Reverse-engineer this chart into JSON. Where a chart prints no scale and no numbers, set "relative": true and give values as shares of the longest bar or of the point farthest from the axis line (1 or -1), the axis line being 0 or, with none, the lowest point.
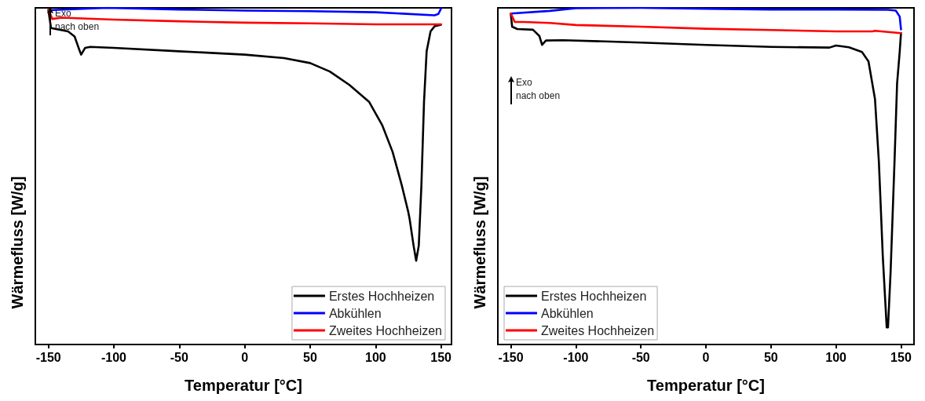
{
  "chart_data": [
    {
      "type": "line",
      "relative": true,
      "xlabel": "Temperatur [°C]",
      "ylabel": "Wärmefluss [W/g]",
      "xlim": [
        -160,
        158
      ],
      "xticks": [
        -150,
        -100,
        -50,
        0,
        50,
        100,
        150
      ],
      "grid": false,
      "legend": "bottom right",
      "marker": "none",
      "line_style": "solid",
      "annotations": [
        "Exo\nnach oben"
      ],
      "series": [
        {
          "name": "Erstes Hochheizen",
          "color": "#000000",
          "x": [
            -150,
            -148,
            -135,
            -130,
            -126,
            -125,
            -122,
            -118,
            -100,
            -50,
            0,
            30,
            50,
            65,
            80,
            95,
            105,
            113,
            120,
            125,
            126,
            129,
            131,
            133,
            135,
            137,
            139,
            142,
            145,
            150
          ],
          "values": [
            0.992,
            0.94,
            0.93,
            0.915,
            0.871,
            0.861,
            0.881,
            0.884,
            0.881,
            0.871,
            0.861,
            0.851,
            0.836,
            0.811,
            0.771,
            0.721,
            0.652,
            0.572,
            0.473,
            0.393,
            0.373,
            0.294,
            0.249,
            0.294,
            0.473,
            0.721,
            0.871,
            0.93,
            0.945,
            0.95
          ]
        },
        {
          "name": "Abkühlen",
          "color": "#0000ff",
          "x": [
            -150,
            -105,
            -50,
            0,
            50,
            100,
            145,
            148,
            150
          ],
          "values": [
            0.993,
            1.0,
            0.995,
            0.992,
            0.99,
            0.987,
            0.978,
            0.982,
            0.998
          ]
        },
        {
          "name": "Zweites Hochheizen",
          "color": "#ff0000",
          "x": [
            -150,
            -147,
            -140,
            -100,
            -50,
            0,
            50,
            100,
            150
          ],
          "values": [
            0.995,
            0.967,
            0.971,
            0.965,
            0.96,
            0.956,
            0.954,
            0.951,
            0.951
          ]
        }
      ]
    },
    {
      "type": "line",
      "relative": true,
      "xlabel": "Temperatur [°C]",
      "ylabel": "Wärmefluss [W/g]",
      "xlim": [
        -160,
        160
      ],
      "xticks": [
        -150,
        -100,
        -50,
        0,
        50,
        100,
        150
      ],
      "grid": false,
      "legend": "bottom left",
      "marker": "none",
      "line_style": "solid",
      "annotations": [
        "Exo\nnach oben"
      ],
      "series": [
        {
          "name": "Erstes Hochheizen",
          "color": "#000000",
          "x": [
            -150,
            -149,
            -145,
            -133,
            -128,
            -126,
            -123,
            -110,
            -50,
            0,
            50,
            95,
            100,
            110,
            120,
            125,
            130,
            133,
            136,
            139,
            140,
            142,
            145,
            147,
            149,
            150
          ],
          "values": [
            0.981,
            0.944,
            0.937,
            0.935,
            0.916,
            0.89,
            0.903,
            0.904,
            0.897,
            0.89,
            0.884,
            0.882,
            0.888,
            0.883,
            0.869,
            0.841,
            0.729,
            0.542,
            0.262,
            0.051,
            0.051,
            0.215,
            0.542,
            0.776,
            0.869,
            0.925
          ]
        },
        {
          "name": "Abkühlen",
          "color": "#0000ff",
          "x": [
            -150,
            -120,
            -100,
            -50,
            0,
            50,
            100,
            140,
            146,
            149,
            150
          ],
          "values": [
            0.983,
            0.991,
            0.999,
            1.0,
            0.997,
            0.995,
            0.995,
            0.994,
            0.992,
            0.974,
            0.936
          ]
        },
        {
          "name": "Zweites Hochheizen",
          "color": "#ff0000",
          "x": [
            -150,
            -147,
            -140,
            -120,
            -100,
            -50,
            0,
            50,
            100,
            128,
            130,
            150
          ],
          "values": [
            0.983,
            0.958,
            0.958,
            0.955,
            0.949,
            0.944,
            0.938,
            0.934,
            0.93,
            0.93,
            0.932,
            0.925
          ]
        }
      ]
    }
  ]
}
